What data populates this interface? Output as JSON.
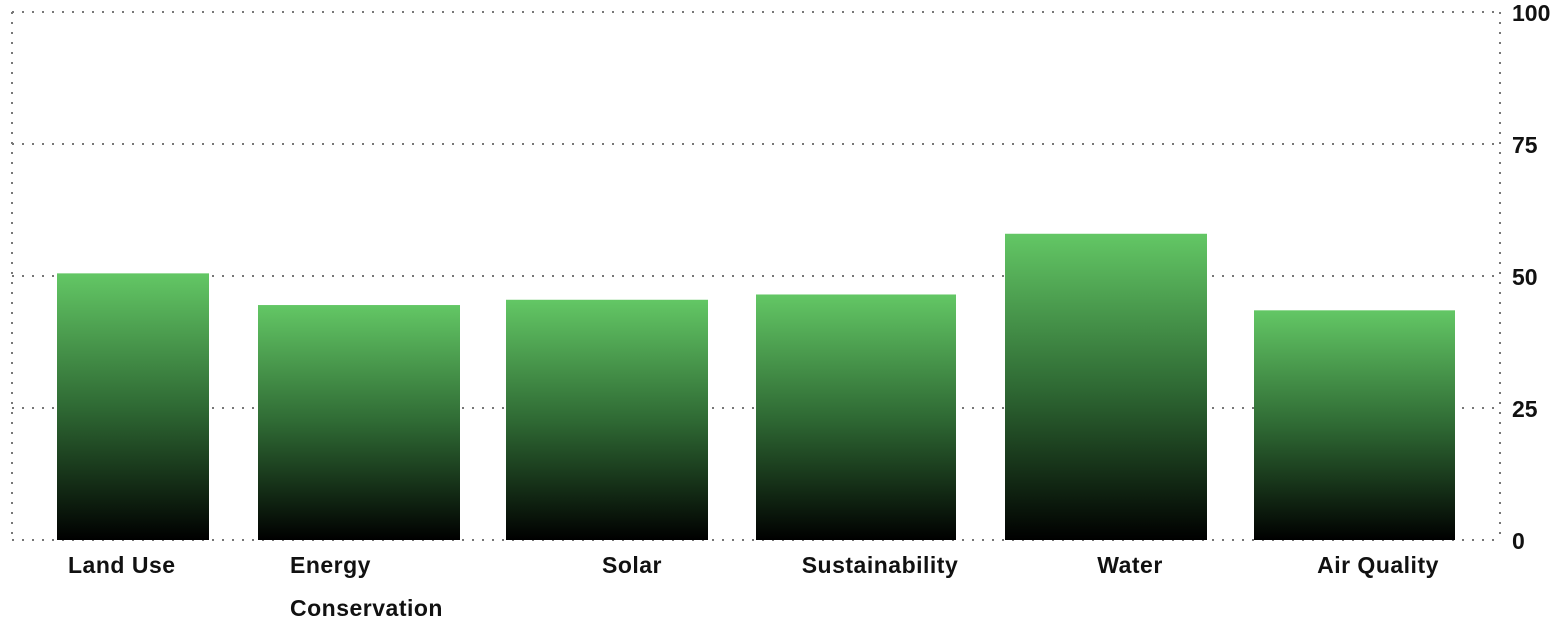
{
  "chart_data": {
    "type": "bar",
    "categories": [
      [
        "Land Use"
      ],
      [
        "Energy",
        "Conservation"
      ],
      [
        "Solar"
      ],
      [
        "Sustainability"
      ],
      [
        "Water"
      ],
      [
        "Air Quality"
      ]
    ],
    "values": [
      50.5,
      44.5,
      45.5,
      46.5,
      58,
      43.5
    ],
    "ylim": [
      0,
      100
    ],
    "yticks": [
      "0",
      "25",
      "50",
      "75",
      "100"
    ],
    "ytick_values": [
      0,
      25,
      50,
      75,
      100
    ],
    "y_axis_side": "right",
    "grid": "horizontal, dotted",
    "bar_gradient": {
      "top": "#63c765",
      "bottom": "#000000"
    },
    "title": "",
    "xlabel": "",
    "ylabel": ""
  }
}
